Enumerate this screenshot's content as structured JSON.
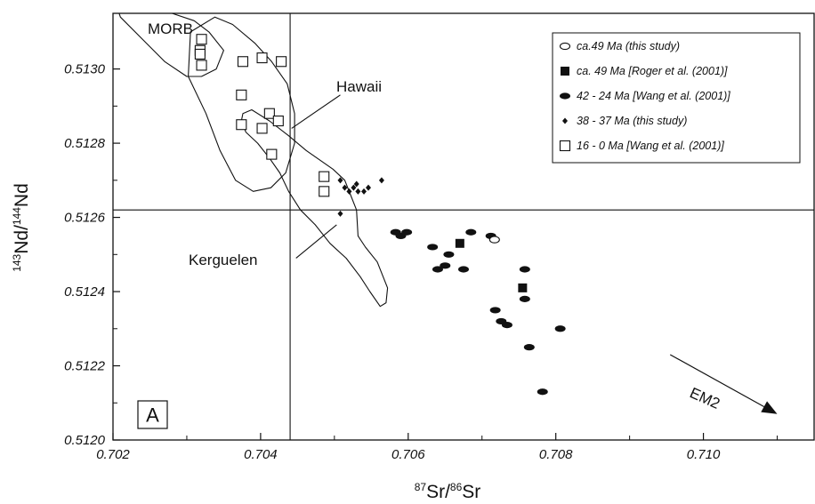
{
  "chart_data": {
    "type": "scatter",
    "xlabel": {
      "sup1": "87",
      "base1": "Sr/",
      "sup2": "86",
      "base2": "Sr"
    },
    "ylabel": {
      "sup1": "143",
      "base1": "Nd/",
      "sup2": "144",
      "base2": "Nd"
    },
    "xlim": [
      0.702,
      0.7115
    ],
    "ylim": [
      0.512,
      0.51315
    ],
    "xticks": [
      "0.702",
      "0.704",
      "0.706",
      "0.708",
      "0.710"
    ],
    "yticks": [
      "0.5120",
      "0.5122",
      "0.5124",
      "0.5126",
      "0.5128",
      "0.5130"
    ],
    "reference_lines": {
      "x": 0.7044,
      "y": 0.51262
    },
    "panel_label": "A",
    "fields": [
      {
        "label": "MORB",
        "points": [
          [
            0.702,
            0.5132
          ],
          [
            0.7022,
            0.51315
          ],
          [
            0.7024,
            0.51315
          ],
          [
            0.7028,
            0.51315
          ],
          [
            0.7031,
            0.51313
          ],
          [
            0.7033,
            0.5131
          ],
          [
            0.7035,
            0.51305
          ],
          [
            0.7034,
            0.513
          ],
          [
            0.7032,
            0.51298
          ],
          [
            0.703,
            0.51298
          ],
          [
            0.7027,
            0.51302
          ],
          [
            0.7024,
            0.51308
          ],
          [
            0.7021,
            0.51314
          ],
          [
            0.702,
            0.5132
          ]
        ]
      },
      {
        "label": "Hawaii",
        "points": [
          [
            0.70305,
            0.5131
          ],
          [
            0.70338,
            0.51314
          ],
          [
            0.70362,
            0.51312
          ],
          [
            0.70392,
            0.51307
          ],
          [
            0.70415,
            0.51302
          ],
          [
            0.70436,
            0.51296
          ],
          [
            0.70446,
            0.51288
          ],
          [
            0.70446,
            0.5128
          ],
          [
            0.70434,
            0.51272
          ],
          [
            0.70414,
            0.51268
          ],
          [
            0.7039,
            0.51267
          ],
          [
            0.70366,
            0.5127
          ],
          [
            0.70345,
            0.51278
          ],
          [
            0.70326,
            0.51288
          ],
          [
            0.70302,
            0.51298
          ],
          [
            0.70305,
            0.5131
          ]
        ]
      },
      {
        "label": "Kerguelen",
        "points": [
          [
            0.70376,
            0.51288
          ],
          [
            0.70388,
            0.51289
          ],
          [
            0.70412,
            0.51286
          ],
          [
            0.70438,
            0.51282
          ],
          [
            0.70462,
            0.51278
          ],
          [
            0.70498,
            0.51273
          ],
          [
            0.70514,
            0.5127
          ],
          [
            0.70522,
            0.51266
          ],
          [
            0.7053,
            0.51262
          ],
          [
            0.70532,
            0.51255
          ],
          [
            0.70542,
            0.51252
          ],
          [
            0.70558,
            0.51248
          ],
          [
            0.70572,
            0.51241
          ],
          [
            0.7057,
            0.51237
          ],
          [
            0.70562,
            0.51236
          ],
          [
            0.70548,
            0.5124
          ],
          [
            0.70535,
            0.51244
          ],
          [
            0.70516,
            0.51249
          ],
          [
            0.70494,
            0.51253
          ],
          [
            0.70474,
            0.51258
          ],
          [
            0.70454,
            0.51262
          ],
          [
            0.70438,
            0.51267
          ],
          [
            0.70426,
            0.51272
          ],
          [
            0.70412,
            0.51276
          ],
          [
            0.70396,
            0.5128
          ],
          [
            0.7038,
            0.51283
          ],
          [
            0.70374,
            0.51286
          ],
          [
            0.70376,
            0.51288
          ]
        ]
      }
    ],
    "annotation_arrows": [
      {
        "label": "Hawaii",
        "from": [
          0.70508,
          0.51293
        ],
        "to": [
          0.70442,
          0.51284
        ]
      },
      {
        "label": "Kerguelen",
        "from": [
          0.70448,
          0.51249
        ],
        "to": [
          0.70503,
          0.51258
        ]
      },
      {
        "label": "EM2",
        "from": [
          0.70955,
          0.51223
        ],
        "to": [
          0.711,
          0.51207
        ]
      }
    ],
    "series": [
      {
        "name": "ca.49 Ma (this study)",
        "marker": "open-circle",
        "points": [
          [
            0.70717,
            0.51254
          ]
        ]
      },
      {
        "name": "ca. 49 Ma [Roger et al. (2001)]",
        "marker": "filled-square",
        "points": [
          [
            0.7067,
            0.51253
          ],
          [
            0.70755,
            0.51241
          ]
        ]
      },
      {
        "name": "42 - 24 Ma [Wang et al. (2001)]",
        "marker": "filled-ellipse",
        "points": [
          [
            0.70583,
            0.51256
          ],
          [
            0.7059,
            0.51255
          ],
          [
            0.70598,
            0.51256
          ],
          [
            0.70633,
            0.51252
          ],
          [
            0.70655,
            0.5125
          ],
          [
            0.7064,
            0.51246
          ],
          [
            0.7065,
            0.51247
          ],
          [
            0.70675,
            0.51246
          ],
          [
            0.70685,
            0.51256
          ],
          [
            0.70712,
            0.51255
          ],
          [
            0.70758,
            0.51246
          ],
          [
            0.70758,
            0.51238
          ],
          [
            0.70718,
            0.51235
          ],
          [
            0.70726,
            0.51232
          ],
          [
            0.70734,
            0.51231
          ],
          [
            0.70764,
            0.51225
          ],
          [
            0.70806,
            0.5123
          ],
          [
            0.70782,
            0.51213
          ]
        ]
      },
      {
        "name": "38 - 37 Ma (this study)",
        "marker": "diamond",
        "points": [
          [
            0.70508,
            0.5127
          ],
          [
            0.70514,
            0.51268
          ],
          [
            0.7052,
            0.51267
          ],
          [
            0.70526,
            0.51268
          ],
          [
            0.7053,
            0.51269
          ],
          [
            0.70532,
            0.51267
          ],
          [
            0.7054,
            0.51267
          ],
          [
            0.70546,
            0.51268
          ],
          [
            0.70564,
            0.5127
          ],
          [
            0.70508,
            0.51261
          ]
        ]
      },
      {
        "name": "16 - 0 Ma [Wang et al. (2001)]",
        "marker": "open-square",
        "points": [
          [
            0.7032,
            0.51308
          ],
          [
            0.70318,
            0.51305
          ],
          [
            0.70318,
            0.51304
          ],
          [
            0.7032,
            0.51301
          ],
          [
            0.70376,
            0.51302
          ],
          [
            0.70402,
            0.51303
          ],
          [
            0.70428,
            0.51302
          ],
          [
            0.70374,
            0.51293
          ],
          [
            0.70374,
            0.51285
          ],
          [
            0.70412,
            0.51288
          ],
          [
            0.70402,
            0.51284
          ],
          [
            0.70424,
            0.51286
          ],
          [
            0.70415,
            0.51277
          ],
          [
            0.70486,
            0.51271
          ],
          [
            0.70486,
            0.51267
          ]
        ]
      }
    ],
    "legend_position": "top-right",
    "grid": false,
    "colors": {
      "ink": "#111111",
      "background": "#ffffff"
    }
  }
}
